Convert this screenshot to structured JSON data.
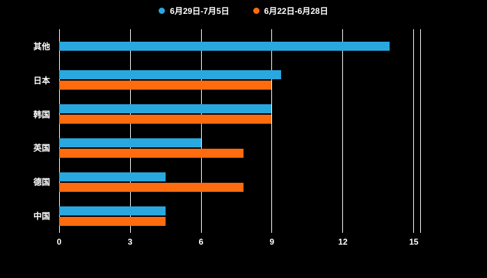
{
  "background": "#000000",
  "legend": {
    "items": [
      {
        "label": "6月29日-7月5日",
        "color": "#29A8DF"
      },
      {
        "label": "6月22日-6月28日",
        "color": "#FF6B0F"
      }
    ]
  },
  "chart_data": {
    "type": "bar",
    "orientation": "horizontal",
    "title": "",
    "categories": [
      "其他",
      "日本",
      "韩国",
      "英国",
      "德国",
      "中国"
    ],
    "series": [
      {
        "name": "6月29日-7月5日",
        "color": "#29A8DF",
        "values": [
          14,
          9.4,
          9,
          6,
          4.5,
          4.5
        ]
      },
      {
        "name": "6月22日-6月28日",
        "color": "#FF6B0F",
        "values": [
          0,
          9,
          9,
          7.8,
          7.8,
          4.5
        ]
      }
    ],
    "x_ticks": [
      0,
      3,
      6,
      9,
      12,
      15
    ],
    "xlim": [
      0,
      15.3
    ],
    "grid": true,
    "legend_position": "top",
    "text_color": "#FFFFFF",
    "gridline_color": "#FFFFFF"
  }
}
